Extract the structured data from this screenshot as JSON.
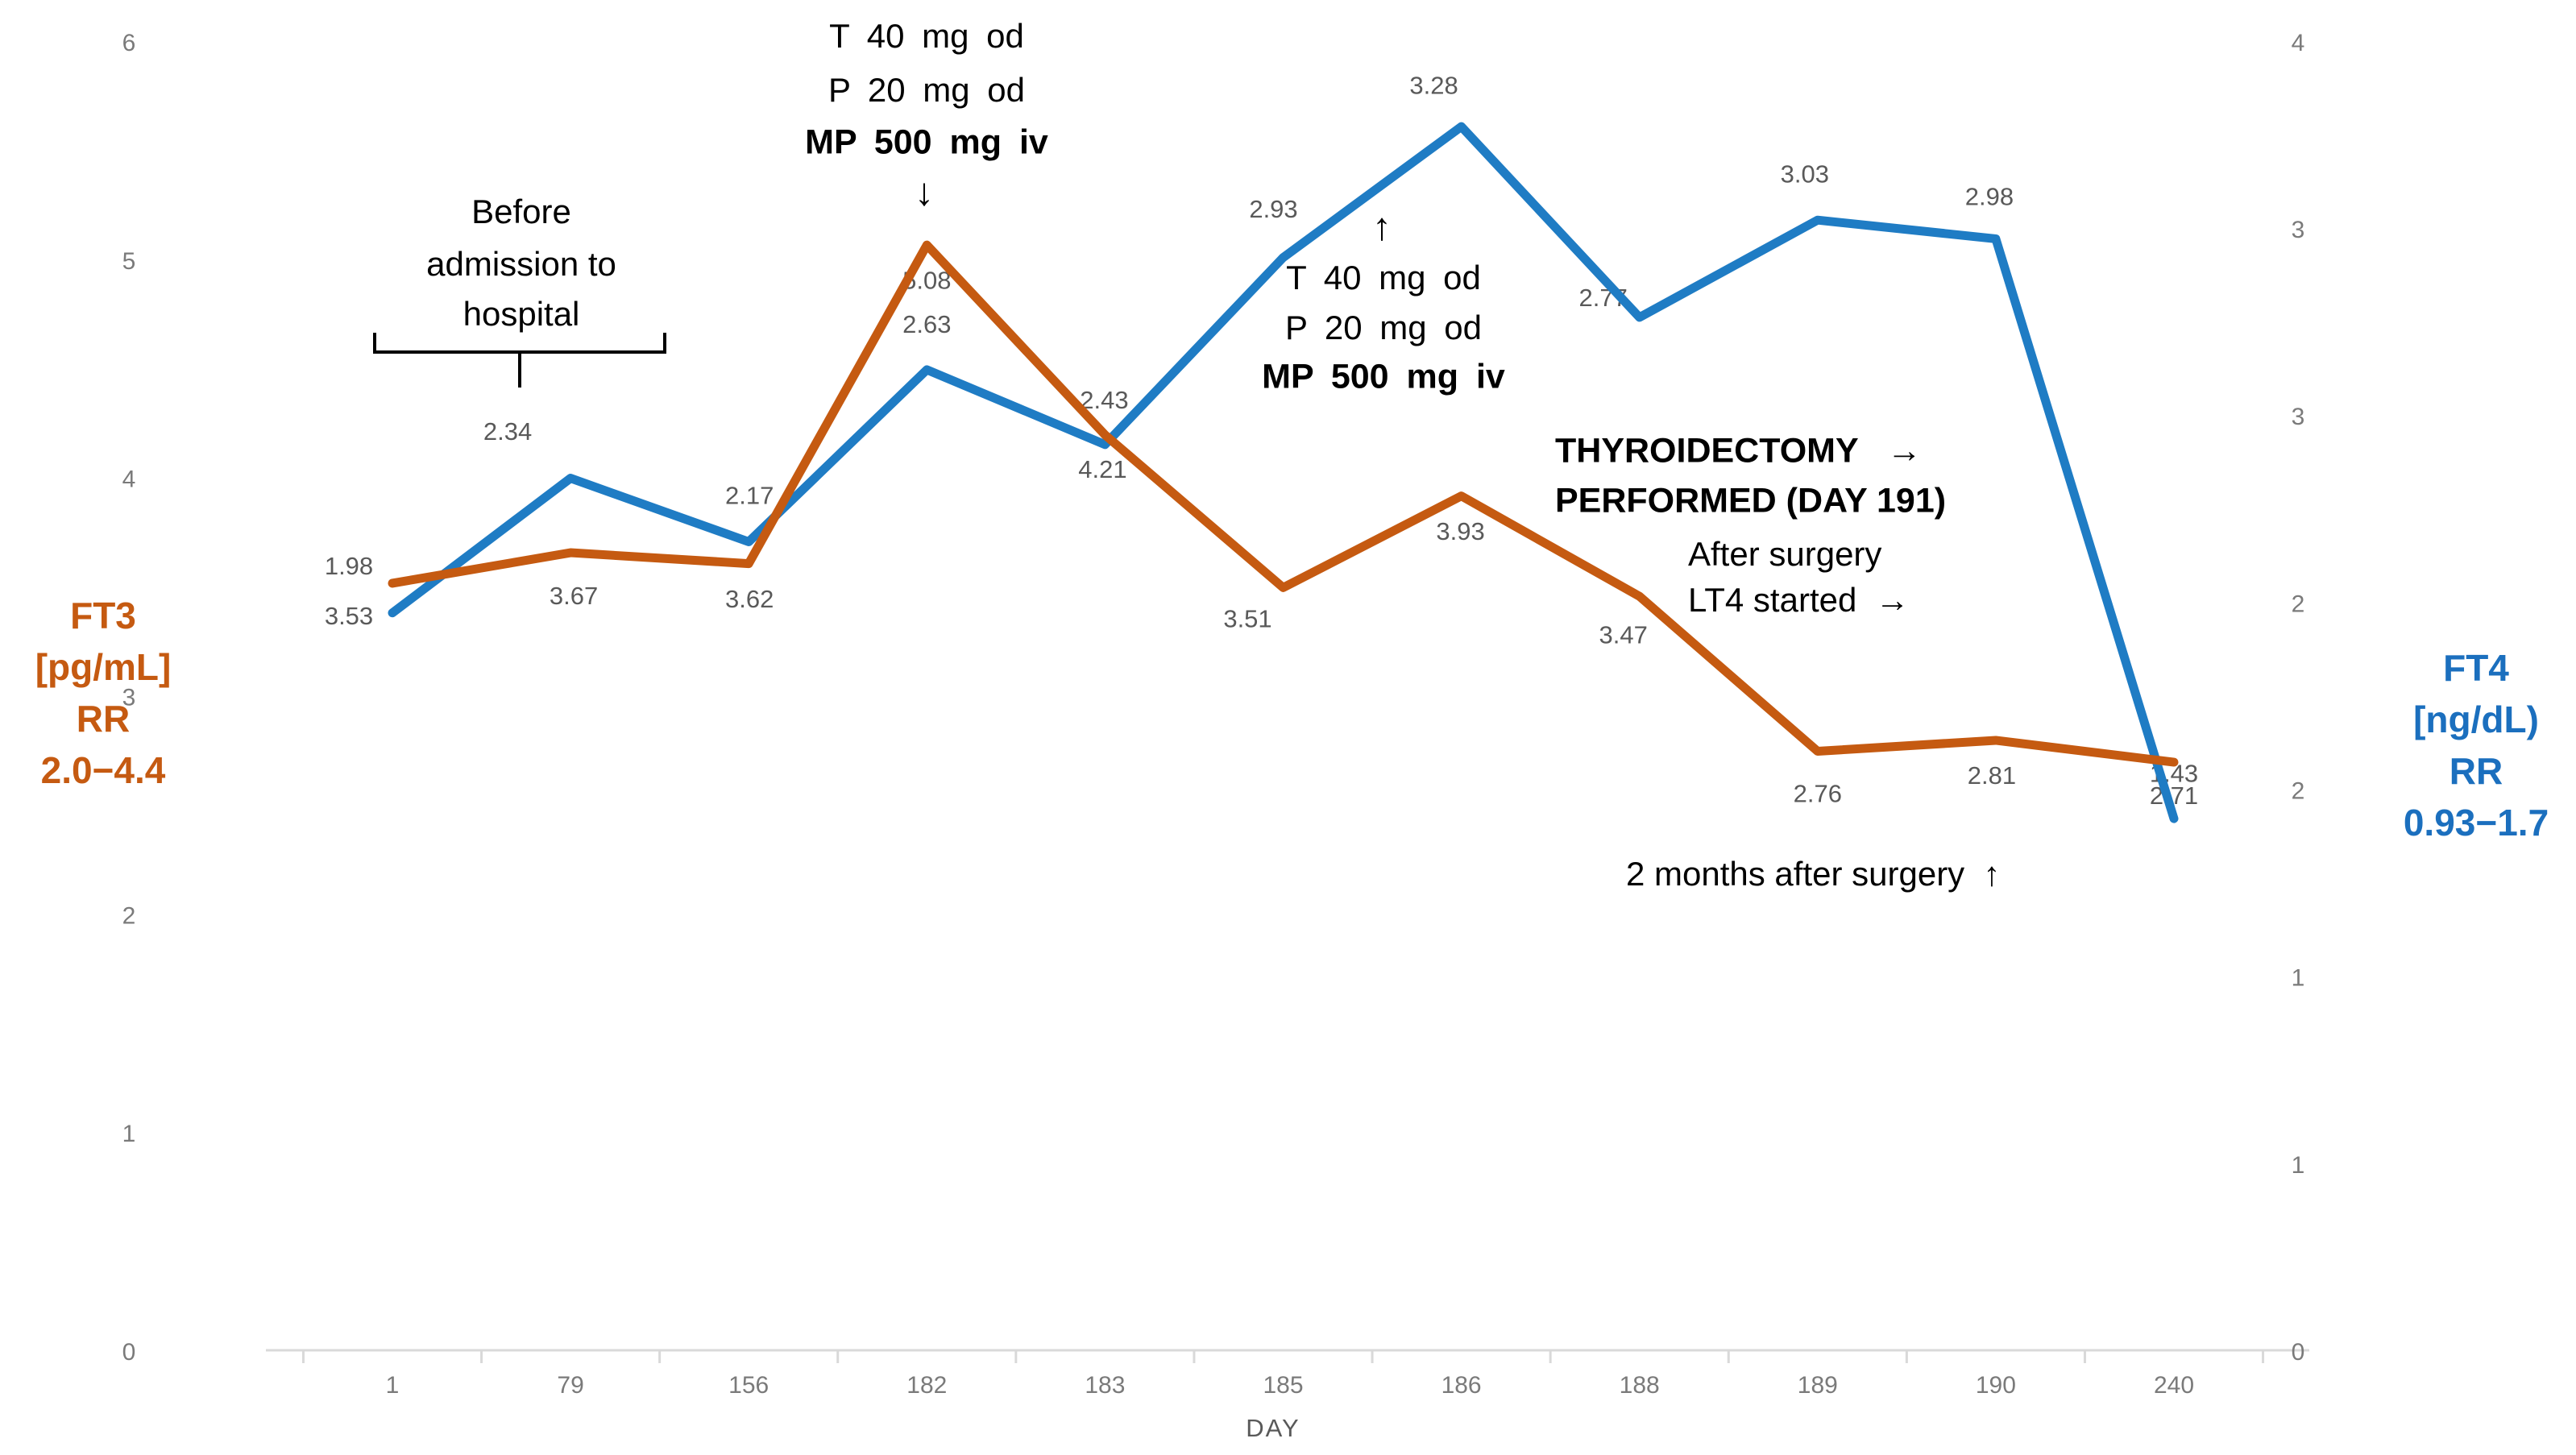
{
  "page": {
    "background": "#FFFFFF"
  },
  "chart_data": {
    "type": "line",
    "title": "",
    "xlabel": "DAY",
    "categories": [
      "1",
      "79",
      "156",
      "182",
      "183",
      "185",
      "186",
      "188",
      "189",
      "190",
      "240"
    ],
    "series": [
      {
        "name": "FT3",
        "axis": "left",
        "unit": "pg/mL",
        "color": "#C55A11",
        "values": [
          3.53,
          3.67,
          3.62,
          5.08,
          4.21,
          3.51,
          3.93,
          3.47,
          2.76,
          2.81,
          2.71
        ],
        "point_labels": [
          "3.53",
          "3.67",
          "3.62",
          "5.08",
          "4.21",
          "3.51",
          "3.93",
          "3.47",
          "2.76",
          "2.81",
          "2.71"
        ]
      },
      {
        "name": "FT4",
        "axis": "right",
        "unit": "ng/dL",
        "color": "#1F7CC4",
        "values": [
          1.98,
          2.34,
          2.17,
          2.63,
          2.43,
          2.93,
          3.28,
          2.77,
          3.03,
          2.98,
          1.43
        ],
        "point_labels": [
          "1.98",
          "2.34",
          "2.17",
          "2.63",
          "2.43",
          "2.93",
          "3.28",
          "2.77",
          "3.03",
          "2.98",
          "1.43"
        ]
      }
    ],
    "left_axis": {
      "title_lines": [
        "FT3",
        "[pg/mL]",
        "RR",
        "2.0−4.4"
      ],
      "min": 0,
      "max": 6,
      "tick_values": [
        0,
        1,
        2,
        3,
        4,
        5,
        6
      ],
      "ticks": [
        "0",
        "1",
        "2",
        "3",
        "4",
        "5",
        "6"
      ]
    },
    "right_axis": {
      "title_lines": [
        "FT4",
        "[ng/dL)",
        "RR",
        "0.93−1.7"
      ],
      "min": 0,
      "max": 3.5,
      "tick_values": [
        0,
        0.5,
        1,
        1.5,
        2,
        2.5,
        3,
        3.5
      ],
      "ticks": [
        "0",
        "1",
        "1",
        "2",
        "2",
        "3",
        "3",
        "4"
      ]
    },
    "grid": "off",
    "legend": "none",
    "value_label_color": "#595959",
    "tick_label_color": "#7A7A7A",
    "axis_line_color": "#D9D9D9",
    "annotations": {
      "med1": [
        "T 40 mg od",
        "P 20 mg od",
        "MP 500 mg iv"
      ],
      "arrow_down": "↓",
      "before": [
        "Before",
        "admission to",
        "hospital"
      ],
      "arrow_up": "↑",
      "med2": [
        "T 40 mg od",
        "P 20 mg od",
        "MP 500 mg iv"
      ],
      "thyro": [
        "THYROIDECTOMY   →",
        "PERFORMED (DAY 191)"
      ],
      "after": [
        "After surgery",
        "LT4 started  →"
      ],
      "months": "2 months after surgery  ↑"
    }
  }
}
